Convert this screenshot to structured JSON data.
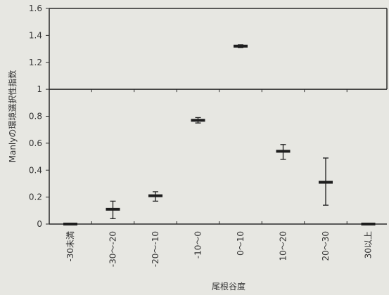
{
  "chart_data": {
    "type": "errorbar",
    "title": "",
    "xlabel": "尾根谷度",
    "ylabel": "Manlyの環境選択性指数",
    "ylim": [
      0,
      1.6
    ],
    "yticks": [
      "0",
      "0.2",
      "0.4",
      "0.6",
      "0.8",
      "1",
      "1.2",
      "1.4",
      "1.6"
    ],
    "reference_line": 1,
    "grid": false,
    "categories": [
      "-30未満",
      "-30～-20",
      "-20～-10",
      "-10～0",
      "0～10",
      "10～20",
      "20～30",
      "30以上"
    ],
    "series": [
      {
        "values": [
          0.0,
          0.11,
          0.21,
          0.77,
          1.32,
          0.54,
          0.31,
          0.0
        ],
        "lower": [
          0.0,
          0.04,
          0.17,
          0.75,
          1.31,
          0.48,
          0.14,
          0.0
        ],
        "upper": [
          0.0,
          0.17,
          0.24,
          0.79,
          1.33,
          0.59,
          0.49,
          0.0
        ]
      }
    ],
    "colors": {
      "mark": "#1e1e1e",
      "axis": "#2a2a2a",
      "background": "#e7e7e2"
    }
  }
}
